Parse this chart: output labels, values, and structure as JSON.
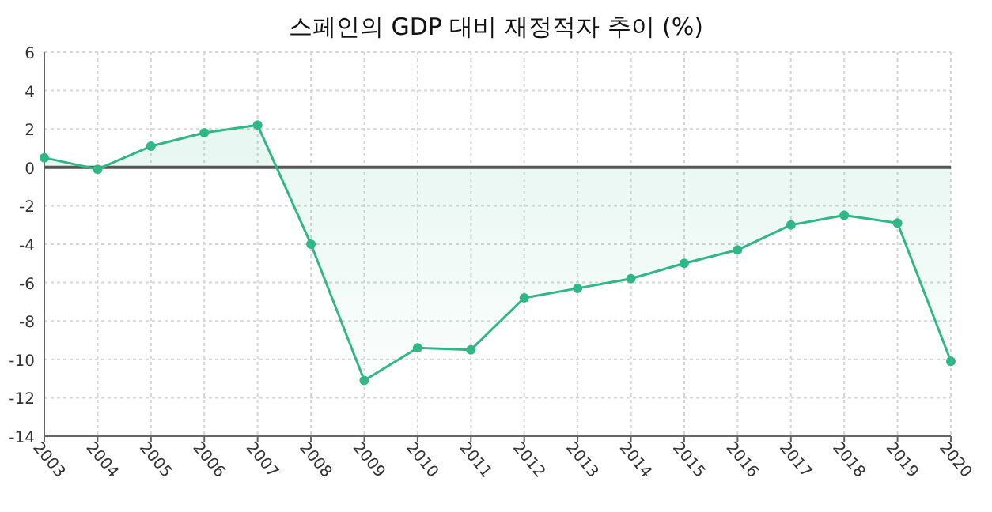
{
  "chart_data": {
    "type": "area",
    "title": "스페인의 GDP 대비 재정적자 추이 (%)",
    "categories": [
      "2003",
      "2004",
      "2005",
      "2006",
      "2007",
      "2008",
      "2009",
      "2010",
      "2011",
      "2012",
      "2013",
      "2014",
      "2015",
      "2016",
      "2017",
      "2018",
      "2019",
      "2020"
    ],
    "values": [
      0.5,
      -0.1,
      1.1,
      1.8,
      2.2,
      -4.0,
      -11.1,
      -9.4,
      -9.5,
      -6.8,
      -6.3,
      -5.8,
      -5.0,
      -4.3,
      -3.0,
      -2.5,
      -2.9,
      -10.1
    ],
    "color": "#2fb886",
    "ylim": [
      -14,
      6
    ],
    "yticks": [
      -14,
      -12,
      -10,
      -8,
      -6,
      -4,
      -2,
      0,
      2,
      4,
      6
    ],
    "grid": true,
    "marker": "circle",
    "ref_lines": [
      {
        "axis": "y",
        "value": 0,
        "color": "#555555"
      }
    ]
  }
}
